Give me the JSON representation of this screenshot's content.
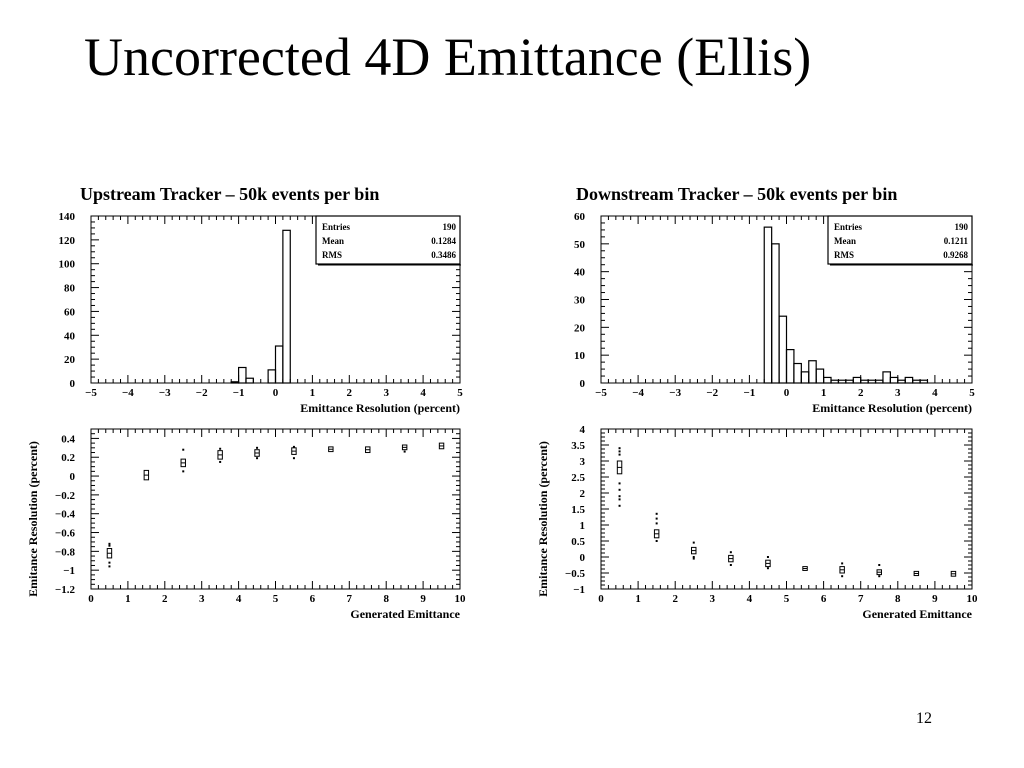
{
  "slide": {
    "title": "Uncorrected 4D Emittance (Ellis)",
    "page_number": "12"
  },
  "chart_data": [
    {
      "id": "upstream-hist",
      "type": "histogram",
      "title": "Upstream Tracker – 50k events per bin",
      "xlabel": "Emittance Resolution (percent)",
      "ylabel": "",
      "xlim": [
        -5,
        5
      ],
      "ylim": [
        0,
        140
      ],
      "xticks": [
        -5,
        -4,
        -3,
        -2,
        -1,
        0,
        1,
        2,
        3,
        4,
        5
      ],
      "yticks": [
        0,
        20,
        40,
        60,
        80,
        100,
        120,
        140
      ],
      "tick_labels_x": [
        "−5",
        "−4",
        "−3",
        "−2",
        "−1",
        "0",
        "1",
        "2",
        "3",
        "4",
        "5"
      ],
      "tick_labels_y": [
        "0",
        "20",
        "40",
        "60",
        "80",
        "100",
        "120",
        "140"
      ],
      "bin_width": 0.2,
      "bins": [
        {
          "x0": -1.2,
          "y": 1
        },
        {
          "x0": -1.0,
          "y": 13
        },
        {
          "x0": -0.8,
          "y": 4
        },
        {
          "x0": -0.2,
          "y": 11
        },
        {
          "x0": 0.0,
          "y": 31
        },
        {
          "x0": 0.2,
          "y": 128
        }
      ],
      "stats": [
        {
          "label": "Entries",
          "value": "190"
        },
        {
          "label": "Mean",
          "value": "0.1284"
        },
        {
          "label": "RMS",
          "value": "0.3486"
        }
      ]
    },
    {
      "id": "downstream-hist",
      "type": "histogram",
      "title": "Downstream Tracker – 50k events per bin",
      "xlabel": "Emittance Resolution (percent)",
      "ylabel": "",
      "xlim": [
        -5,
        5
      ],
      "ylim": [
        0,
        60
      ],
      "xticks": [
        -5,
        -4,
        -3,
        -2,
        -1,
        0,
        1,
        2,
        3,
        4,
        5
      ],
      "yticks": [
        0,
        10,
        20,
        30,
        40,
        50,
        60
      ],
      "tick_labels_x": [
        "−5",
        "−4",
        "−3",
        "−2",
        "−1",
        "0",
        "1",
        "2",
        "3",
        "4",
        "5"
      ],
      "tick_labels_y": [
        "0",
        "10",
        "20",
        "30",
        "40",
        "50",
        "60"
      ],
      "bin_width": 0.2,
      "bins": [
        {
          "x0": -0.6,
          "y": 56
        },
        {
          "x0": -0.4,
          "y": 50
        },
        {
          "x0": -0.2,
          "y": 24
        },
        {
          "x0": 0.0,
          "y": 12
        },
        {
          "x0": 0.2,
          "y": 7
        },
        {
          "x0": 0.4,
          "y": 4
        },
        {
          "x0": 0.6,
          "y": 8
        },
        {
          "x0": 0.8,
          "y": 5
        },
        {
          "x0": 1.0,
          "y": 2
        },
        {
          "x0": 1.2,
          "y": 1
        },
        {
          "x0": 1.4,
          "y": 1
        },
        {
          "x0": 1.6,
          "y": 1
        },
        {
          "x0": 1.8,
          "y": 2
        },
        {
          "x0": 2.0,
          "y": 1
        },
        {
          "x0": 2.2,
          "y": 1
        },
        {
          "x0": 2.4,
          "y": 1
        },
        {
          "x0": 2.6,
          "y": 4
        },
        {
          "x0": 2.8,
          "y": 2
        },
        {
          "x0": 3.0,
          "y": 1
        },
        {
          "x0": 3.2,
          "y": 2
        },
        {
          "x0": 3.4,
          "y": 1
        },
        {
          "x0": 3.6,
          "y": 1
        }
      ],
      "stats": [
        {
          "label": "Entries",
          "value": "190"
        },
        {
          "label": "Mean",
          "value": "0.1211"
        },
        {
          "label": "RMS",
          "value": "0.9268"
        }
      ]
    },
    {
      "id": "upstream-box",
      "type": "box",
      "title": "",
      "xlabel": "Generated Emittance",
      "ylabel": "Emitance Resolution (percent)",
      "xlim": [
        0,
        10
      ],
      "ylim": [
        -1.2,
        0.5
      ],
      "xticks": [
        0,
        1,
        2,
        3,
        4,
        5,
        6,
        7,
        8,
        9,
        10
      ],
      "yticks": [
        -1.2,
        -1,
        -0.8,
        -0.6,
        -0.4,
        -0.2,
        0,
        0.2,
        0.4
      ],
      "tick_labels_x": [
        "0",
        "1",
        "2",
        "3",
        "4",
        "5",
        "6",
        "7",
        "8",
        "9",
        "10"
      ],
      "tick_labels_y": [
        "−1.2",
        "−1",
        "−0.8",
        "−0.6",
        "−0.4",
        "−0.2",
        "0",
        "0.2",
        "0.4"
      ],
      "box_half_width": 0.06,
      "boxes": [
        {
          "x": 0.5,
          "lo": -0.87,
          "hi": -0.77,
          "outliers": [
            -0.72,
            -0.74,
            -0.92,
            -0.96
          ]
        },
        {
          "x": 1.5,
          "lo": -0.04,
          "hi": 0.06,
          "outliers": []
        },
        {
          "x": 2.5,
          "lo": 0.1,
          "hi": 0.18,
          "outliers": [
            0.05,
            0.28
          ]
        },
        {
          "x": 3.5,
          "lo": 0.18,
          "hi": 0.27,
          "outliers": [
            0.15,
            0.29
          ]
        },
        {
          "x": 4.5,
          "lo": 0.21,
          "hi": 0.28,
          "outliers": [
            0.19,
            0.3
          ]
        },
        {
          "x": 5.5,
          "lo": 0.23,
          "hi": 0.3,
          "outliers": [
            0.19,
            0.31
          ]
        },
        {
          "x": 6.5,
          "lo": 0.26,
          "hi": 0.31,
          "outliers": []
        },
        {
          "x": 7.5,
          "lo": 0.25,
          "hi": 0.31,
          "outliers": []
        },
        {
          "x": 8.5,
          "lo": 0.28,
          "hi": 0.33,
          "outliers": [
            0.26
          ]
        },
        {
          "x": 9.5,
          "lo": 0.29,
          "hi": 0.35,
          "outliers": []
        }
      ]
    },
    {
      "id": "downstream-box",
      "type": "box",
      "title": "",
      "xlabel": "Generated Emittance",
      "ylabel": "Emitance Resolution (percent)",
      "xlim": [
        0,
        10
      ],
      "ylim": [
        -1,
        4
      ],
      "xticks": [
        0,
        1,
        2,
        3,
        4,
        5,
        6,
        7,
        8,
        9,
        10
      ],
      "yticks": [
        -1,
        -0.5,
        0,
        0.5,
        1,
        1.5,
        2,
        2.5,
        3,
        3.5,
        4
      ],
      "tick_labels_x": [
        "0",
        "1",
        "2",
        "3",
        "4",
        "5",
        "6",
        "7",
        "8",
        "9",
        "10"
      ],
      "tick_labels_y": [
        "−1",
        "−0.5",
        "0",
        "0.5",
        "1",
        "1.5",
        "2",
        "2.5",
        "3",
        "3.5",
        "4"
      ],
      "box_half_width": 0.06,
      "boxes": [
        {
          "x": 0.5,
          "lo": 2.6,
          "hi": 3.0,
          "outliers": [
            1.6,
            1.8,
            1.9,
            2.1,
            2.3,
            3.2,
            3.3,
            3.4
          ]
        },
        {
          "x": 1.5,
          "lo": 0.6,
          "hi": 0.85,
          "outliers": [
            1.05,
            1.2,
            1.35,
            0.5
          ]
        },
        {
          "x": 2.5,
          "lo": 0.1,
          "hi": 0.3,
          "outliers": [
            0.45,
            0.0,
            -0.05
          ]
        },
        {
          "x": 3.5,
          "lo": -0.15,
          "hi": 0.05,
          "outliers": [
            0.15,
            -0.25
          ]
        },
        {
          "x": 4.5,
          "lo": -0.3,
          "hi": -0.1,
          "outliers": [
            0.0,
            -0.35
          ]
        },
        {
          "x": 5.5,
          "lo": -0.42,
          "hi": -0.3,
          "outliers": []
        },
        {
          "x": 6.5,
          "lo": -0.5,
          "hi": -0.3,
          "outliers": [
            -0.2,
            -0.6
          ]
        },
        {
          "x": 7.5,
          "lo": -0.55,
          "hi": -0.4,
          "outliers": [
            -0.25,
            -0.6
          ]
        },
        {
          "x": 8.5,
          "lo": -0.58,
          "hi": -0.45,
          "outliers": []
        },
        {
          "x": 9.5,
          "lo": -0.6,
          "hi": -0.45,
          "outliers": []
        }
      ]
    }
  ]
}
